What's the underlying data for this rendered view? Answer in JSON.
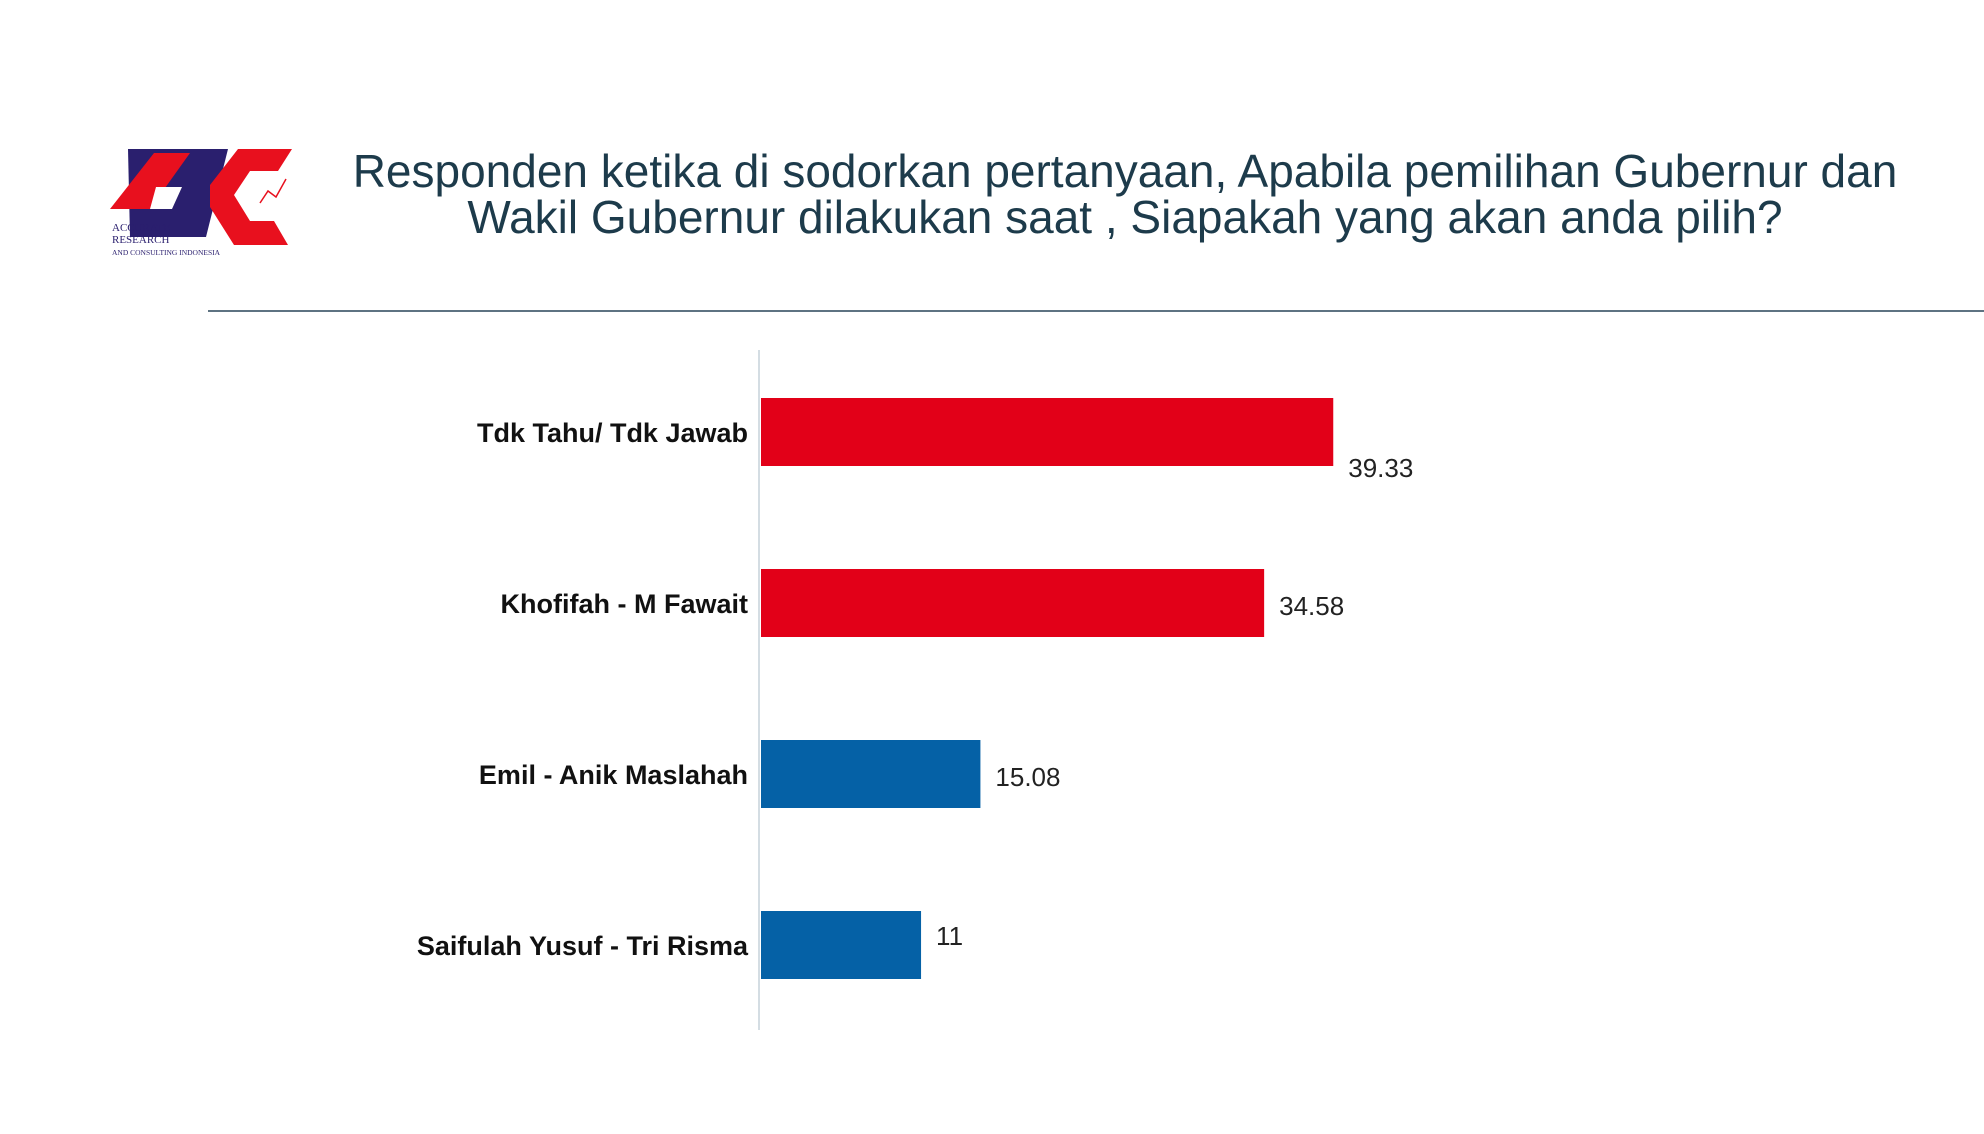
{
  "header": {
    "title_lines": [
      "Responden ketika di sodorkan pertanyaan, Apabila pemilihan Gubernur dan",
      "Wakil Gubernur dilakukan saat , Siapakah yang akan anda pilih?"
    ]
  },
  "logo": {
    "icon": "arc-logo",
    "text_lines": [
      "ACCURATE",
      "RESEARCH",
      "AND CONSULTING INDONESIA"
    ],
    "colors": {
      "red": "#e8101e",
      "navy": "#2a1f6e"
    }
  },
  "chart_data": {
    "type": "bar",
    "orientation": "horizontal",
    "categories": [
      "Tdk Tahu/ Tdk Jawab",
      "Khofifah - M Fawait",
      "Emil - Anik Maslahah",
      "Saifulah Yusuf - Tri Risma"
    ],
    "values": [
      39.33,
      34.58,
      15.08,
      11
    ],
    "value_labels": [
      "39.33",
      "34.58",
      "15.08",
      "11"
    ],
    "colors": [
      "#e20018",
      "#e20018",
      "#0561a6",
      "#0561a6"
    ],
    "xlim": [
      0,
      100
    ],
    "grid": false,
    "legend": "none"
  }
}
